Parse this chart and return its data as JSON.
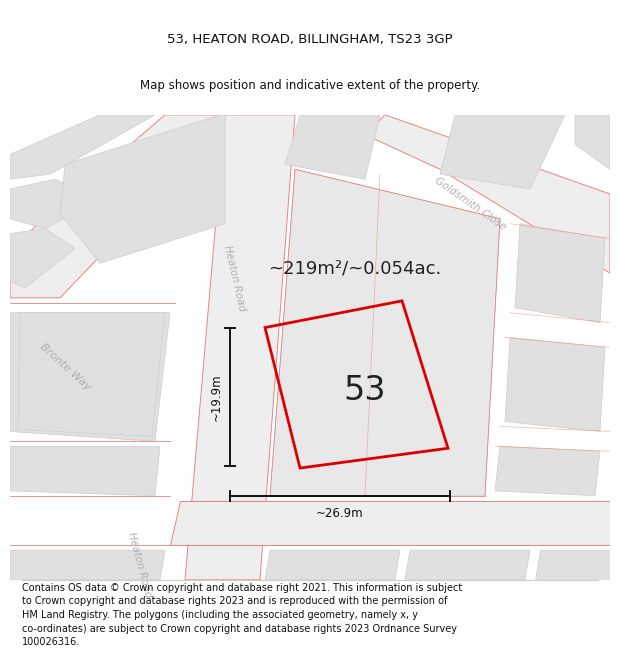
{
  "title": "53, HEATON ROAD, BILLINGHAM, TS23 3GP",
  "subtitle": "Map shows position and indicative extent of the property.",
  "footer": "Contains OS data © Crown copyright and database right 2021. This information is subject\nto Crown copyright and database rights 2023 and is reproduced with the permission of\nHM Land Registry. The polygons (including the associated geometry, namely x, y\nco-ordinates) are subject to Crown copyright and database rights 2023 Ordnance Survey\n100026316.",
  "area_label": "~219m²/~0.054ac.",
  "width_label": "~26.9m",
  "height_label": "~19.9m",
  "property_number": "53",
  "map_bg": "#f7f7f7",
  "road_fill": "#f0f0f0",
  "block_fill": "#e0e0e0",
  "road_line_color": "#f08080",
  "property_outline_color": "#dd0000",
  "dim_color": "#111111",
  "street_label_color": "#b0b0b0",
  "title_fontsize": 9.5,
  "subtitle_fontsize": 8.5,
  "footer_fontsize": 7.0
}
